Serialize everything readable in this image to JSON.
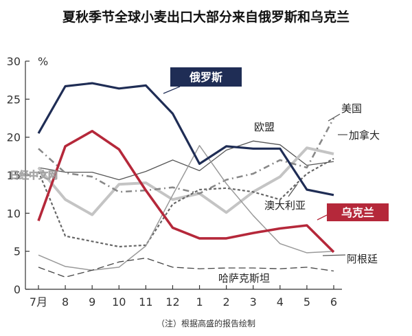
{
  "title": "夏秋季节全球小麦出口大部分来自俄罗斯和乌克兰",
  "note": "（注）根据高盛的报告绘制",
  "watermark": "日经中文网",
  "chart_data": {
    "type": "line",
    "unit": "%",
    "categories": [
      "7月",
      "8",
      "9",
      "10",
      "11",
      "12",
      "1",
      "2",
      "3",
      "4",
      "5",
      "6"
    ],
    "y_ticks": [
      0,
      5,
      10,
      15,
      20,
      25,
      30
    ],
    "ylim": [
      0,
      30
    ],
    "grid": false,
    "series": [
      {
        "name": "俄罗斯",
        "color": "#1f2d55",
        "width": 3.2,
        "dash": "",
        "label_style": "tag",
        "values": [
          20.5,
          26.7,
          27.1,
          26.4,
          26.8,
          23.1,
          16.5,
          18.8,
          18.5,
          18.5,
          13.1,
          12.4
        ]
      },
      {
        "name": "乌克兰",
        "color": "#b5283a",
        "width": 3.6,
        "dash": "",
        "label_style": "tag",
        "values": [
          9.0,
          18.8,
          20.8,
          18.4,
          13.0,
          8.1,
          6.7,
          6.7,
          7.4,
          8.0,
          8.4,
          4.9
        ]
      },
      {
        "name": "欧盟",
        "color": "#555555",
        "width": 1.3,
        "dash": "",
        "label_style": "text",
        "values": [
          16.0,
          15.4,
          15.4,
          14.4,
          15.5,
          17.0,
          15.6,
          18.3,
          19.5,
          19.0,
          16.3,
          16.8
        ]
      },
      {
        "name": "加拿大",
        "color": "#c4c4c4",
        "width": 4.0,
        "dash": "",
        "label_style": "text",
        "values": [
          16.0,
          11.8,
          9.8,
          13.8,
          14.0,
          11.8,
          12.6,
          10.1,
          12.8,
          14.8,
          18.6,
          17.8
        ]
      },
      {
        "name": "美国",
        "color": "#888888",
        "width": 2.6,
        "dash": "9,5,2,5",
        "label_style": "text",
        "values": [
          18.5,
          15.3,
          14.8,
          12.8,
          13.0,
          13.4,
          12.6,
          14.4,
          15.2,
          17.0,
          16.0,
          22.5
        ]
      },
      {
        "name": "澳大利亚",
        "color": "#666666",
        "width": 2.2,
        "dash": "4,3",
        "label_style": "text",
        "values": [
          15.5,
          7.0,
          6.3,
          5.6,
          5.8,
          11.2,
          13.1,
          13.3,
          12.8,
          11.8,
          15.2,
          17.2
        ]
      },
      {
        "name": "阿根廷",
        "color": "#999999",
        "width": 1.5,
        "dash": "",
        "label_style": "text",
        "values": [
          4.5,
          3.0,
          2.5,
          2.9,
          5.7,
          12.4,
          18.9,
          13.9,
          9.7,
          6.0,
          4.8,
          5.0
        ]
      },
      {
        "name": "哈萨克斯坦",
        "color": "#444444",
        "width": 1.3,
        "dash": "10,5",
        "label_style": "text",
        "values": [
          2.9,
          1.6,
          2.5,
          3.6,
          4.1,
          2.9,
          2.7,
          2.8,
          2.8,
          2.7,
          2.9,
          2.4
        ]
      }
    ]
  }
}
